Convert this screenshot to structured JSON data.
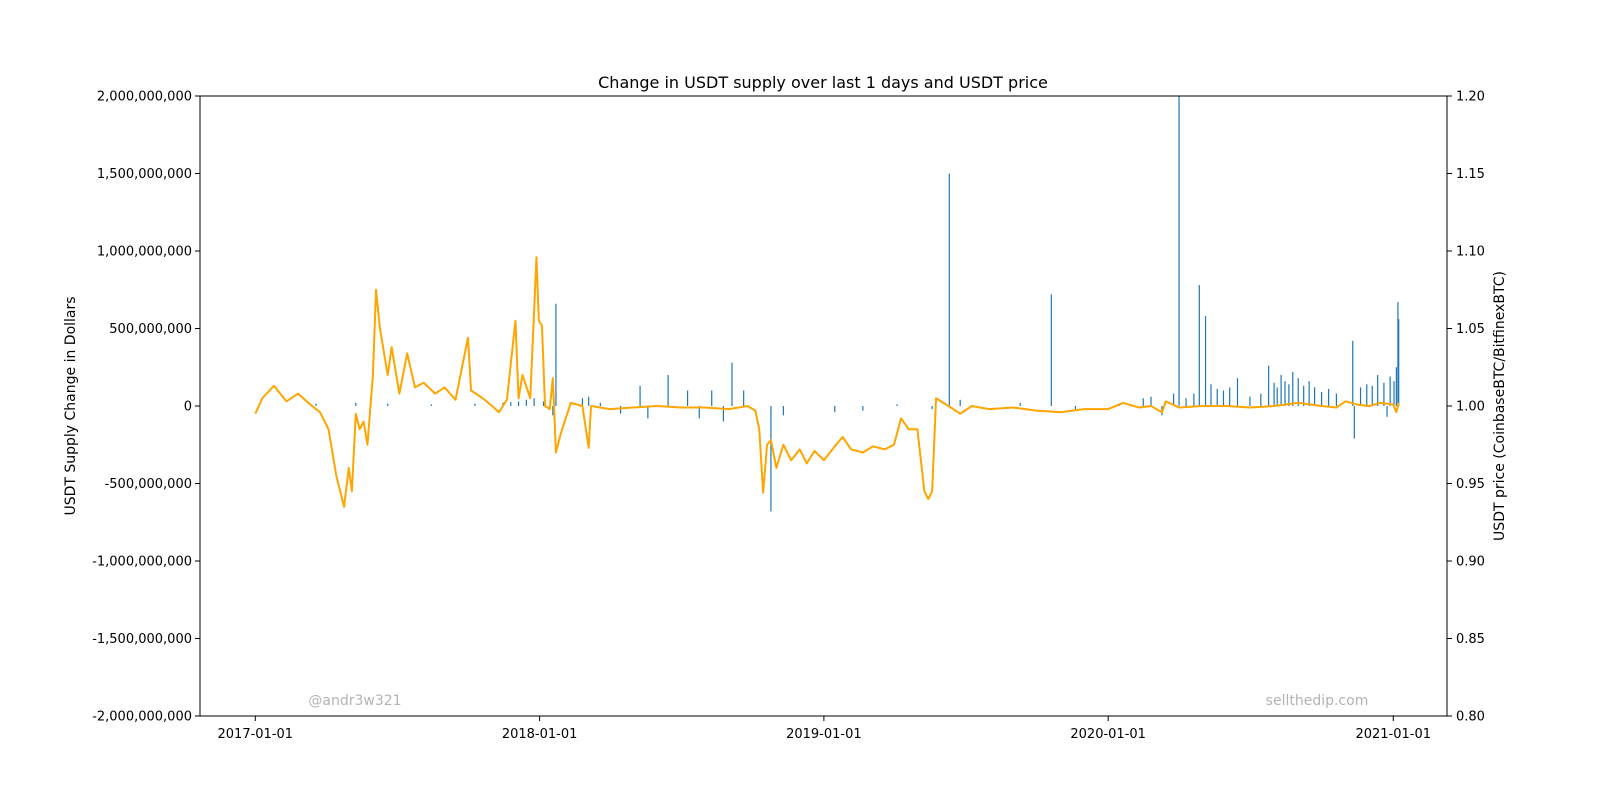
{
  "chart_data": {
    "type": "bar",
    "title": "Change in USDT supply over last 1 days and USDT price",
    "ylabel": "USDT Supply Change in Dollars",
    "y2label": "USDT price (CoinbaseBTC/BitfinexBTC)",
    "xlabel": "",
    "grid": false,
    "xlim": [
      "2016-10-22",
      "2021-03-11"
    ],
    "ylim": [
      -2000000000,
      2000000000
    ],
    "y2lim": [
      0.8,
      1.2
    ],
    "x_ticks": [
      "2017-01-01",
      "2018-01-01",
      "2019-01-01",
      "2020-01-01",
      "2021-01-01"
    ],
    "y_ticks": [
      {
        "value": 2000000000,
        "label": "2,000,000,000"
      },
      {
        "value": 1500000000,
        "label": "1,500,000,000"
      },
      {
        "value": 1000000000,
        "label": "1,000,000,000"
      },
      {
        "value": 500000000,
        "label": "500,000,000"
      },
      {
        "value": 0,
        "label": "0"
      },
      {
        "value": -500000000,
        "label": "-500,000,000"
      },
      {
        "value": -1000000000,
        "label": "-1,000,000,000"
      },
      {
        "value": -1500000000,
        "label": "-1,500,000,000"
      },
      {
        "value": -2000000000,
        "label": "-2,000,000,000"
      }
    ],
    "y2_ticks": [
      {
        "value": 1.2,
        "label": "1.20"
      },
      {
        "value": 1.15,
        "label": "1.15"
      },
      {
        "value": 1.1,
        "label": "1.10"
      },
      {
        "value": 1.05,
        "label": "1.05"
      },
      {
        "value": 1.0,
        "label": "1.00"
      },
      {
        "value": 0.95,
        "label": "0.95"
      },
      {
        "value": 0.9,
        "label": "0.90"
      },
      {
        "value": 0.85,
        "label": "0.85"
      },
      {
        "value": 0.8,
        "label": "0.80"
      }
    ],
    "series": [
      {
        "type": "bar",
        "axis": "left",
        "color": "#1f77b4",
        "points": [
          [
            "2017-03-20",
            15000000
          ],
          [
            "2017-05-10",
            20000000
          ],
          [
            "2017-06-20",
            15000000
          ],
          [
            "2017-08-15",
            10000000
          ],
          [
            "2017-10-10",
            15000000
          ],
          [
            "2017-11-15",
            20000000
          ],
          [
            "2017-11-25",
            25000000
          ],
          [
            "2017-12-05",
            30000000
          ],
          [
            "2017-12-15",
            40000000
          ],
          [
            "2017-12-25",
            50000000
          ],
          [
            "2018-01-06",
            30000000
          ],
          [
            "2018-01-18",
            -60000000
          ],
          [
            "2018-01-22",
            660000000
          ],
          [
            "2018-02-25",
            50000000
          ],
          [
            "2018-03-05",
            60000000
          ],
          [
            "2018-03-20",
            20000000
          ],
          [
            "2018-04-15",
            -50000000
          ],
          [
            "2018-05-10",
            130000000
          ],
          [
            "2018-05-20",
            -80000000
          ],
          [
            "2018-06-15",
            200000000
          ],
          [
            "2018-07-10",
            100000000
          ],
          [
            "2018-07-25",
            -80000000
          ],
          [
            "2018-08-10",
            100000000
          ],
          [
            "2018-08-25",
            -100000000
          ],
          [
            "2018-09-05",
            280000000
          ],
          [
            "2018-09-20",
            100000000
          ],
          [
            "2018-10-25",
            -680000000
          ],
          [
            "2018-11-10",
            -60000000
          ],
          [
            "2019-01-15",
            -40000000
          ],
          [
            "2019-02-20",
            -30000000
          ],
          [
            "2019-04-05",
            10000000
          ],
          [
            "2019-05-20",
            -20000000
          ],
          [
            "2019-06-11",
            1500000000
          ],
          [
            "2019-06-25",
            40000000
          ],
          [
            "2019-09-10",
            20000000
          ],
          [
            "2019-10-20",
            720000000
          ],
          [
            "2019-11-20",
            -20000000
          ],
          [
            "2020-01-15",
            10000000
          ],
          [
            "2020-02-15",
            50000000
          ],
          [
            "2020-02-25",
            60000000
          ],
          [
            "2020-03-10",
            -60000000
          ],
          [
            "2020-03-25",
            80000000
          ],
          [
            "2020-04-01",
            2000000000
          ],
          [
            "2020-04-10",
            50000000
          ],
          [
            "2020-04-20",
            80000000
          ],
          [
            "2020-04-27",
            780000000
          ],
          [
            "2020-05-05",
            580000000
          ],
          [
            "2020-05-12",
            140000000
          ],
          [
            "2020-05-20",
            110000000
          ],
          [
            "2020-05-28",
            100000000
          ],
          [
            "2020-06-05",
            120000000
          ],
          [
            "2020-06-15",
            180000000
          ],
          [
            "2020-07-01",
            60000000
          ],
          [
            "2020-07-15",
            80000000
          ],
          [
            "2020-07-25",
            260000000
          ],
          [
            "2020-08-01",
            150000000
          ],
          [
            "2020-08-05",
            120000000
          ],
          [
            "2020-08-10",
            200000000
          ],
          [
            "2020-08-15",
            160000000
          ],
          [
            "2020-08-20",
            140000000
          ],
          [
            "2020-08-25",
            220000000
          ],
          [
            "2020-09-01",
            180000000
          ],
          [
            "2020-09-08",
            130000000
          ],
          [
            "2020-09-15",
            160000000
          ],
          [
            "2020-09-22",
            120000000
          ],
          [
            "2020-10-01",
            90000000
          ],
          [
            "2020-10-10",
            110000000
          ],
          [
            "2020-10-20",
            80000000
          ],
          [
            "2020-11-10",
            420000000
          ],
          [
            "2020-11-12",
            -210000000
          ],
          [
            "2020-11-20",
            120000000
          ],
          [
            "2020-11-28",
            140000000
          ],
          [
            "2020-12-05",
            130000000
          ],
          [
            "2020-12-12",
            200000000
          ],
          [
            "2020-12-20",
            150000000
          ],
          [
            "2020-12-24",
            -70000000
          ],
          [
            "2020-12-28",
            190000000
          ],
          [
            "2021-01-02",
            160000000
          ],
          [
            "2021-01-05",
            250000000
          ],
          [
            "2021-01-07",
            670000000
          ],
          [
            "2021-01-08",
            560000000
          ]
        ]
      },
      {
        "type": "line",
        "axis": "right",
        "color": "#ffa500",
        "points": [
          [
            "2017-01-01",
            0.995
          ],
          [
            "2017-01-10",
            1.005
          ],
          [
            "2017-01-25",
            1.013
          ],
          [
            "2017-02-10",
            1.003
          ],
          [
            "2017-02-25",
            1.008
          ],
          [
            "2017-03-10",
            1.002
          ],
          [
            "2017-03-25",
            0.996
          ],
          [
            "2017-04-05",
            0.985
          ],
          [
            "2017-04-15",
            0.955
          ],
          [
            "2017-04-20",
            0.945
          ],
          [
            "2017-04-25",
            0.935
          ],
          [
            "2017-05-01",
            0.96
          ],
          [
            "2017-05-05",
            0.945
          ],
          [
            "2017-05-10",
            0.995
          ],
          [
            "2017-05-15",
            0.985
          ],
          [
            "2017-05-20",
            0.99
          ],
          [
            "2017-05-25",
            0.975
          ],
          [
            "2017-06-01",
            1.02
          ],
          [
            "2017-06-05",
            1.075
          ],
          [
            "2017-06-10",
            1.05
          ],
          [
            "2017-06-15",
            1.035
          ],
          [
            "2017-06-20",
            1.02
          ],
          [
            "2017-06-25",
            1.038
          ],
          [
            "2017-07-05",
            1.008
          ],
          [
            "2017-07-15",
            1.034
          ],
          [
            "2017-07-25",
            1.012
          ],
          [
            "2017-08-05",
            1.015
          ],
          [
            "2017-08-20",
            1.008
          ],
          [
            "2017-09-01",
            1.012
          ],
          [
            "2017-09-15",
            1.004
          ],
          [
            "2017-10-01",
            1.044
          ],
          [
            "2017-10-05",
            1.01
          ],
          [
            "2017-10-20",
            1.005
          ],
          [
            "2017-11-01",
            1.0
          ],
          [
            "2017-11-10",
            0.996
          ],
          [
            "2017-11-20",
            1.004
          ],
          [
            "2017-12-01",
            1.055
          ],
          [
            "2017-12-05",
            1.005
          ],
          [
            "2017-12-10",
            1.02
          ],
          [
            "2017-12-20",
            1.005
          ],
          [
            "2017-12-28",
            1.096
          ],
          [
            "2017-12-31",
            1.055
          ],
          [
            "2018-01-04",
            1.052
          ],
          [
            "2018-01-08",
            1.0
          ],
          [
            "2018-01-14",
            0.998
          ],
          [
            "2018-01-18",
            1.018
          ],
          [
            "2018-01-22",
            0.97
          ],
          [
            "2018-01-28",
            0.982
          ],
          [
            "2018-02-10",
            1.002
          ],
          [
            "2018-02-25",
            1.0
          ],
          [
            "2018-03-05",
            0.973
          ],
          [
            "2018-03-08",
            1.0
          ],
          [
            "2018-04-01",
            0.998
          ],
          [
            "2018-05-01",
            0.999
          ],
          [
            "2018-06-01",
            1.0
          ],
          [
            "2018-07-01",
            0.999
          ],
          [
            "2018-08-01",
            0.999
          ],
          [
            "2018-09-01",
            0.998
          ],
          [
            "2018-09-25",
            1.0
          ],
          [
            "2018-10-05",
            0.997
          ],
          [
            "2018-10-10",
            0.985
          ],
          [
            "2018-10-15",
            0.944
          ],
          [
            "2018-10-20",
            0.975
          ],
          [
            "2018-10-25",
            0.978
          ],
          [
            "2018-11-01",
            0.96
          ],
          [
            "2018-11-10",
            0.975
          ],
          [
            "2018-11-20",
            0.965
          ],
          [
            "2018-12-01",
            0.972
          ],
          [
            "2018-12-10",
            0.963
          ],
          [
            "2018-12-20",
            0.971
          ],
          [
            "2019-01-01",
            0.965
          ],
          [
            "2019-01-15",
            0.974
          ],
          [
            "2019-01-25",
            0.98
          ],
          [
            "2019-02-05",
            0.972
          ],
          [
            "2019-02-20",
            0.97
          ],
          [
            "2019-03-05",
            0.974
          ],
          [
            "2019-03-20",
            0.972
          ],
          [
            "2019-04-01",
            0.975
          ],
          [
            "2019-04-10",
            0.992
          ],
          [
            "2019-04-20",
            0.985
          ],
          [
            "2019-05-01",
            0.985
          ],
          [
            "2019-05-10",
            0.945
          ],
          [
            "2019-05-15",
            0.94
          ],
          [
            "2019-05-20",
            0.945
          ],
          [
            "2019-05-25",
            1.005
          ],
          [
            "2019-06-10",
            1.0
          ],
          [
            "2019-06-25",
            0.995
          ],
          [
            "2019-07-10",
            1.0
          ],
          [
            "2019-08-01",
            0.998
          ],
          [
            "2019-09-01",
            0.999
          ],
          [
            "2019-10-01",
            0.997
          ],
          [
            "2019-11-01",
            0.996
          ],
          [
            "2019-12-01",
            0.998
          ],
          [
            "2020-01-01",
            0.998
          ],
          [
            "2020-01-20",
            1.002
          ],
          [
            "2020-02-10",
            0.999
          ],
          [
            "2020-02-25",
            1.0
          ],
          [
            "2020-03-10",
            0.996
          ],
          [
            "2020-03-15",
            1.003
          ],
          [
            "2020-04-01",
            0.999
          ],
          [
            "2020-05-01",
            1.0
          ],
          [
            "2020-06-01",
            1.0
          ],
          [
            "2020-07-01",
            0.999
          ],
          [
            "2020-08-01",
            1.0
          ],
          [
            "2020-09-01",
            1.002
          ],
          [
            "2020-10-01",
            1.0
          ],
          [
            "2020-10-20",
            0.999
          ],
          [
            "2020-11-01",
            1.003
          ],
          [
            "2020-11-15",
            1.001
          ],
          [
            "2020-12-01",
            1.0
          ],
          [
            "2020-12-15",
            1.002
          ],
          [
            "2021-01-01",
            1.001
          ],
          [
            "2021-01-05",
            0.996
          ],
          [
            "2021-01-08",
            1.002
          ]
        ]
      }
    ],
    "annotations": [
      "@andr3w321",
      "sellthedip.com"
    ]
  }
}
